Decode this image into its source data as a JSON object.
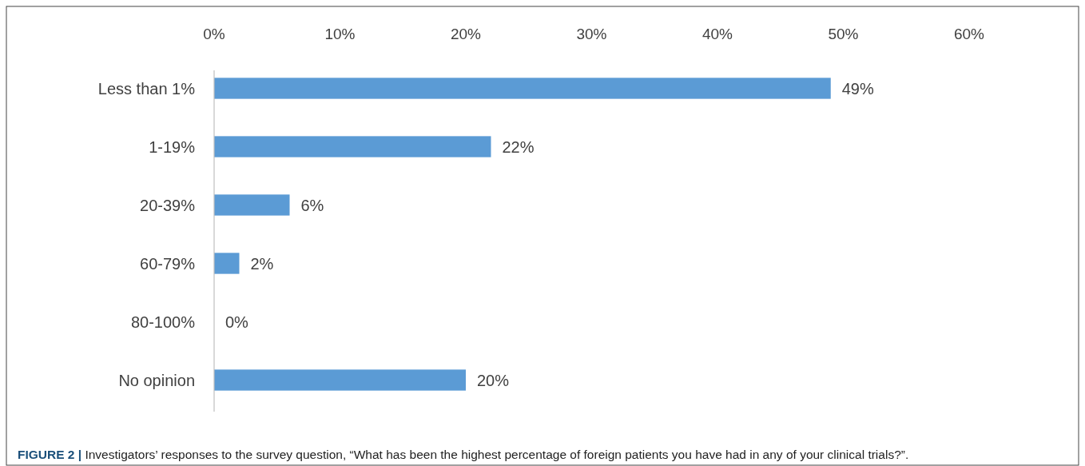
{
  "chart_data": {
    "type": "bar",
    "orientation": "horizontal",
    "categories": [
      "Less than 1%",
      "1-19%",
      "20-39%",
      "60-79%",
      "80-100%",
      "No opinion"
    ],
    "values": [
      49,
      22,
      6,
      2,
      0,
      20
    ],
    "value_labels": [
      "49%",
      "22%",
      "6%",
      "2%",
      "0%",
      "20%"
    ],
    "color": "#5b9bd5",
    "xlim": [
      0,
      60
    ],
    "xticks": [
      {
        "value": 0,
        "label": "0%"
      },
      {
        "value": 10,
        "label": "10%"
      },
      {
        "value": 20,
        "label": "20%"
      },
      {
        "value": 30,
        "label": "30%"
      },
      {
        "value": 40,
        "label": "40%"
      },
      {
        "value": 50,
        "label": "50%"
      },
      {
        "value": 60,
        "label": "60%"
      }
    ],
    "grid": false,
    "annotations": [
      "FIGURE 2 |",
      "Investigators’ responses to the survey question, “What has been the highest percentage of foreign patients you have had in any of your clinical trials?”."
    ]
  }
}
